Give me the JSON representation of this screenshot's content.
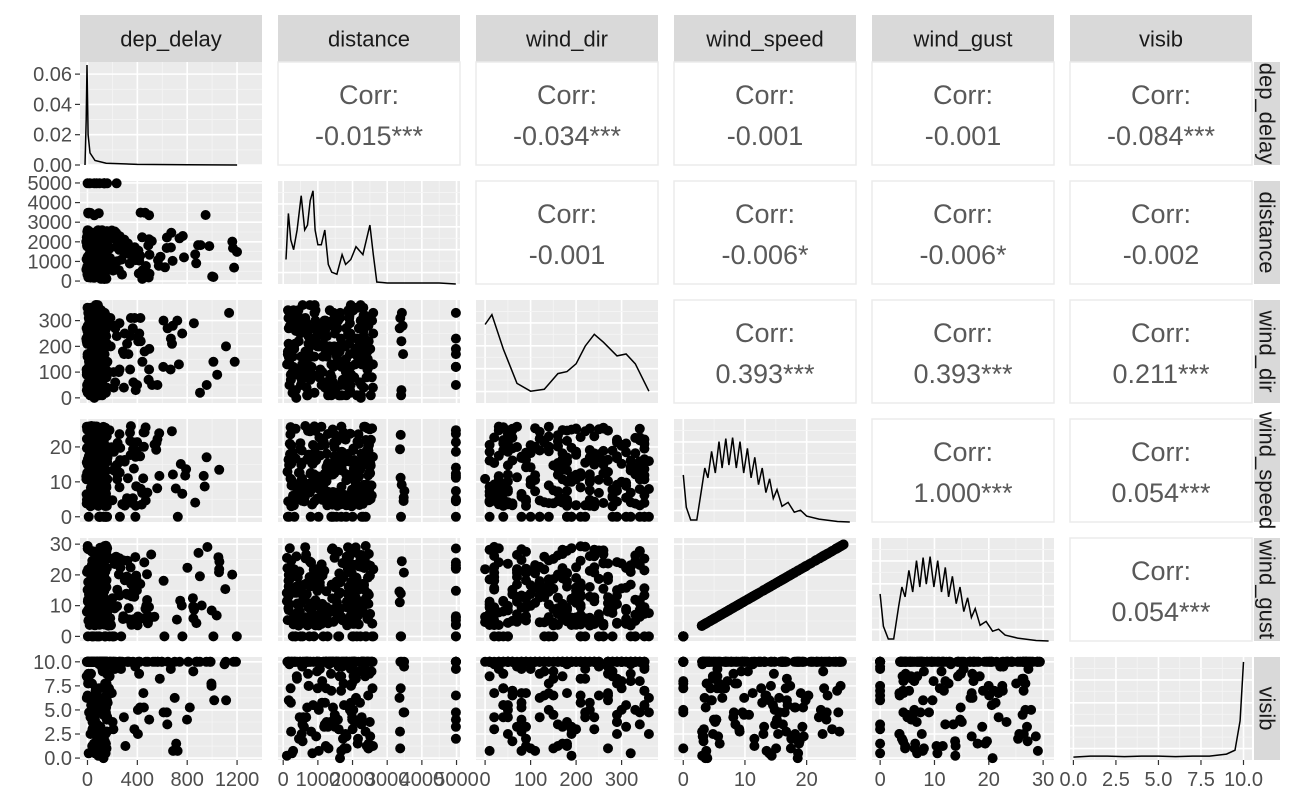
{
  "colors": {
    "panel_bg": "#ebebeb",
    "strip_bg": "#d9d9d9",
    "grid_major": "#ffffff",
    "grid_minor": "#f5f5f5",
    "point": "#000000",
    "line": "#000000",
    "corr_text": "#595959",
    "axis_text": "#4d4d4d",
    "strip_text": "#1a1a1a",
    "upper_border": "#ebebeb"
  },
  "chart_data": {
    "type": "scatter",
    "variables": [
      "dep_delay",
      "distance",
      "wind_dir",
      "wind_speed",
      "wind_gust",
      "visib"
    ],
    "axes": {
      "dep_delay": {
        "range": [
          -60,
          1400
        ],
        "ticks": [
          0,
          400,
          800,
          1200
        ],
        "tick_labels": [
          "0",
          "400",
          "800",
          "1200"
        ]
      },
      "distance": {
        "range": [
          -150,
          5100
        ],
        "ticks": [
          0,
          1000,
          2000,
          3000,
          4000,
          5000
        ],
        "tick_labels": [
          "0",
          "1000",
          "2000",
          "3000",
          "4000",
          "5000"
        ]
      },
      "wind_dir": {
        "range": [
          -20,
          380
        ],
        "ticks": [
          0,
          100,
          200,
          300
        ],
        "tick_labels": [
          "0",
          "100",
          "200",
          "300"
        ]
      },
      "wind_speed": {
        "range": [
          -1.5,
          28
        ],
        "ticks": [
          0,
          10,
          20
        ],
        "tick_labels": [
          "0",
          "10",
          "20"
        ]
      },
      "wind_gust": {
        "range": [
          -1.5,
          32
        ],
        "ticks": [
          0,
          10,
          20,
          30
        ],
        "tick_labels": [
          "0",
          "10",
          "20",
          "30"
        ]
      },
      "visib": {
        "range": [
          -0.2,
          10.5
        ],
        "ticks": [
          0,
          2.5,
          5,
          7.5,
          10
        ],
        "tick_labels": [
          "0.0",
          "2.5",
          "5.0",
          "7.5",
          "10.0"
        ]
      }
    },
    "diag_axes": {
      "dep_delay": {
        "range": [
          0,
          0.068
        ],
        "ticks": [
          0,
          0.02,
          0.04,
          0.06
        ],
        "tick_labels": [
          "0.00",
          "0.02",
          "0.04",
          "0.06"
        ]
      }
    },
    "correlations": [
      {
        "row": 0,
        "col": 1,
        "label": "Corr:",
        "value": "-0.015***"
      },
      {
        "row": 0,
        "col": 2,
        "label": "Corr:",
        "value": "-0.034***"
      },
      {
        "row": 0,
        "col": 3,
        "label": "Corr:",
        "value": "-0.001"
      },
      {
        "row": 0,
        "col": 4,
        "label": "Corr:",
        "value": "-0.001"
      },
      {
        "row": 0,
        "col": 5,
        "label": "Corr:",
        "value": "-0.084***"
      },
      {
        "row": 1,
        "col": 2,
        "label": "Corr:",
        "value": "-0.001"
      },
      {
        "row": 1,
        "col": 3,
        "label": "Corr:",
        "value": "-0.006*"
      },
      {
        "row": 1,
        "col": 4,
        "label": "Corr:",
        "value": "-0.006*"
      },
      {
        "row": 1,
        "col": 5,
        "label": "Corr:",
        "value": "-0.002"
      },
      {
        "row": 2,
        "col": 3,
        "label": "Corr:",
        "value": "0.393***"
      },
      {
        "row": 2,
        "col": 4,
        "label": "Corr:",
        "value": "0.393***"
      },
      {
        "row": 2,
        "col": 5,
        "label": "Corr:",
        "value": "0.211***"
      },
      {
        "row": 3,
        "col": 4,
        "label": "Corr:",
        "value": "1.000***"
      },
      {
        "row": 3,
        "col": 5,
        "label": "Corr:",
        "value": "0.054***"
      },
      {
        "row": 4,
        "col": 5,
        "label": "Corr:",
        "value": "0.054***"
      }
    ],
    "densities": {
      "dep_delay": [
        [
          -20,
          0.0
        ],
        [
          -10,
          0.03
        ],
        [
          -4,
          0.066
        ],
        [
          0,
          0.045
        ],
        [
          5,
          0.02
        ],
        [
          20,
          0.008
        ],
        [
          60,
          0.003
        ],
        [
          150,
          0.0012
        ],
        [
          400,
          0.0004
        ],
        [
          800,
          0.0001
        ],
        [
          1200,
          0.0
        ]
      ],
      "distance": [
        [
          80,
          0.25
        ],
        [
          150,
          0.72
        ],
        [
          220,
          0.45
        ],
        [
          300,
          0.35
        ],
        [
          400,
          0.55
        ],
        [
          520,
          0.9
        ],
        [
          620,
          0.55
        ],
        [
          700,
          0.6
        ],
        [
          780,
          0.85
        ],
        [
          860,
          0.95
        ],
        [
          920,
          0.55
        ],
        [
          1000,
          0.4
        ],
        [
          1100,
          0.4
        ],
        [
          1200,
          0.55
        ],
        [
          1300,
          0.2
        ],
        [
          1400,
          0.12
        ],
        [
          1550,
          0.1
        ],
        [
          1700,
          0.3
        ],
        [
          1800,
          0.2
        ],
        [
          1950,
          0.25
        ],
        [
          2100,
          0.38
        ],
        [
          2300,
          0.3
        ],
        [
          2500,
          0.6
        ],
        [
          2600,
          0.3
        ],
        [
          2700,
          0.02
        ],
        [
          3000,
          0.01
        ],
        [
          3500,
          0.01
        ],
        [
          4000,
          0.01
        ],
        [
          4500,
          0.01
        ],
        [
          4980,
          0.0
        ]
      ],
      "wind_dir": [
        [
          0,
          0.8
        ],
        [
          15,
          0.9
        ],
        [
          40,
          0.55
        ],
        [
          70,
          0.2
        ],
        [
          100,
          0.12
        ],
        [
          130,
          0.14
        ],
        [
          160,
          0.3
        ],
        [
          180,
          0.32
        ],
        [
          200,
          0.4
        ],
        [
          220,
          0.58
        ],
        [
          240,
          0.7
        ],
        [
          260,
          0.62
        ],
        [
          290,
          0.48
        ],
        [
          310,
          0.5
        ],
        [
          330,
          0.4
        ],
        [
          360,
          0.12
        ]
      ],
      "wind_speed": [
        [
          0,
          0.48
        ],
        [
          0.5,
          0.15
        ],
        [
          1.2,
          0.02
        ],
        [
          2.2,
          0.02
        ],
        [
          3,
          0.35
        ],
        [
          3.5,
          0.55
        ],
        [
          4,
          0.45
        ],
        [
          4.6,
          0.72
        ],
        [
          5.2,
          0.5
        ],
        [
          5.8,
          0.82
        ],
        [
          6.3,
          0.55
        ],
        [
          6.9,
          0.85
        ],
        [
          7.4,
          0.58
        ],
        [
          8,
          0.86
        ],
        [
          8.6,
          0.55
        ],
        [
          9.2,
          0.82
        ],
        [
          9.8,
          0.5
        ],
        [
          10.4,
          0.75
        ],
        [
          11,
          0.45
        ],
        [
          11.6,
          0.66
        ],
        [
          12.2,
          0.38
        ],
        [
          12.8,
          0.55
        ],
        [
          13.4,
          0.3
        ],
        [
          14,
          0.44
        ],
        [
          14.6,
          0.24
        ],
        [
          15.2,
          0.33
        ],
        [
          16,
          0.16
        ],
        [
          17,
          0.2
        ],
        [
          18,
          0.1
        ],
        [
          19,
          0.12
        ],
        [
          20,
          0.06
        ],
        [
          22,
          0.03
        ],
        [
          25,
          0.005
        ],
        [
          27,
          0.0
        ]
      ],
      "wind_gust": [
        [
          0,
          0.48
        ],
        [
          0.6,
          0.15
        ],
        [
          1.5,
          0.02
        ],
        [
          2.5,
          0.02
        ],
        [
          3.4,
          0.35
        ],
        [
          4,
          0.55
        ],
        [
          4.6,
          0.45
        ],
        [
          5.3,
          0.72
        ],
        [
          6,
          0.5
        ],
        [
          6.7,
          0.82
        ],
        [
          7.3,
          0.55
        ],
        [
          7.9,
          0.85
        ],
        [
          8.5,
          0.58
        ],
        [
          9.2,
          0.86
        ],
        [
          9.9,
          0.55
        ],
        [
          10.6,
          0.82
        ],
        [
          11.3,
          0.5
        ],
        [
          12,
          0.75
        ],
        [
          12.6,
          0.45
        ],
        [
          13.3,
          0.66
        ],
        [
          14,
          0.38
        ],
        [
          14.7,
          0.55
        ],
        [
          15.4,
          0.3
        ],
        [
          16.1,
          0.44
        ],
        [
          16.8,
          0.24
        ],
        [
          17.5,
          0.33
        ],
        [
          18.4,
          0.16
        ],
        [
          19.5,
          0.2
        ],
        [
          20.7,
          0.1
        ],
        [
          21.8,
          0.12
        ],
        [
          23,
          0.06
        ],
        [
          25.3,
          0.03
        ],
        [
          28.7,
          0.005
        ],
        [
          31,
          0.0
        ]
      ],
      "visib": [
        [
          0,
          0.03
        ],
        [
          1,
          0.04
        ],
        [
          2,
          0.04
        ],
        [
          3,
          0.035
        ],
        [
          4,
          0.04
        ],
        [
          5,
          0.04
        ],
        [
          6,
          0.035
        ],
        [
          7,
          0.04
        ],
        [
          8,
          0.04
        ],
        [
          9,
          0.06
        ],
        [
          9.5,
          0.1
        ],
        [
          9.8,
          0.4
        ],
        [
          10,
          1.0
        ]
      ]
    }
  }
}
